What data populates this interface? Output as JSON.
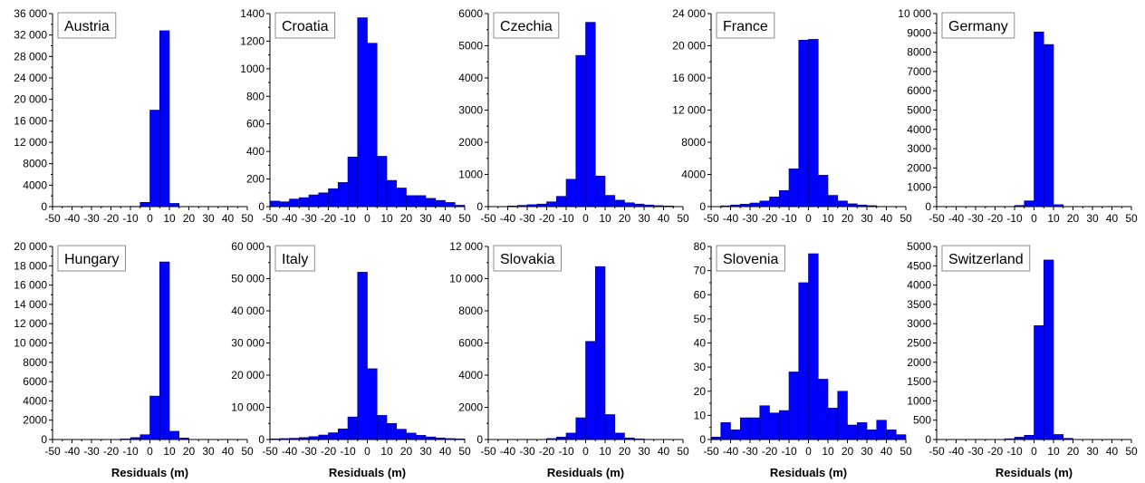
{
  "figure": {
    "bar_color": "#0000ff",
    "bar_edge_color": "#000080",
    "xlabel": "Residuals (m)"
  },
  "chart_data": [
    {
      "type": "bar",
      "title": "Austria",
      "xlabel": "",
      "ylabel": "",
      "bin_width": 5,
      "bin_edges_from": -50,
      "xlim": [
        -50,
        50
      ],
      "ylim": [
        0,
        36000
      ],
      "xticks": [
        -50,
        -40,
        -30,
        -20,
        -10,
        0,
        10,
        20,
        30,
        40,
        50
      ],
      "xtick_labels": [
        "-50",
        "-40",
        "-30",
        "-20",
        "-10",
        "0",
        "10",
        "20",
        "30",
        "40",
        "50"
      ],
      "yticks": [
        0,
        4000,
        8000,
        12000,
        16000,
        20000,
        24000,
        28000,
        32000,
        36000
      ],
      "ytick_labels": [
        "0",
        "4000",
        "8000",
        "12 000",
        "16 000",
        "20 000",
        "24 000",
        "28 000",
        "32 000",
        "36 000"
      ],
      "values": [
        0,
        0,
        0,
        0,
        0,
        0,
        0,
        20,
        100,
        800,
        18000,
        32800,
        600,
        30,
        0,
        0,
        0,
        0,
        0,
        0
      ]
    },
    {
      "type": "bar",
      "title": "Croatia",
      "xlabel": "",
      "ylabel": "",
      "bin_width": 5,
      "bin_edges_from": -50,
      "xlim": [
        -50,
        50
      ],
      "ylim": [
        0,
        1400
      ],
      "xticks": [
        -50,
        -40,
        -30,
        -20,
        -10,
        0,
        10,
        20,
        30,
        40,
        50
      ],
      "xtick_labels": [
        "-50",
        "-40",
        "-30",
        "-20",
        "-10",
        "0",
        "10",
        "20",
        "30",
        "40",
        "50"
      ],
      "yticks": [
        0,
        200,
        400,
        600,
        800,
        1000,
        1200,
        1400
      ],
      "ytick_labels": [
        "0",
        "200",
        "400",
        "600",
        "800",
        "1000",
        "1200",
        "1400"
      ],
      "values": [
        40,
        35,
        55,
        65,
        85,
        100,
        130,
        175,
        360,
        1370,
        1185,
        365,
        190,
        135,
        80,
        80,
        60,
        45,
        30,
        10
      ]
    },
    {
      "type": "bar",
      "title": "Czechia",
      "xlabel": "",
      "ylabel": "",
      "bin_width": 5,
      "bin_edges_from": -50,
      "xlim": [
        -50,
        50
      ],
      "ylim": [
        0,
        6000
      ],
      "xticks": [
        -50,
        -40,
        -30,
        -20,
        -10,
        0,
        10,
        20,
        30,
        40,
        50
      ],
      "xtick_labels": [
        "-50",
        "-40",
        "-30",
        "-20",
        "-10",
        "0",
        "10",
        "20",
        "30",
        "40",
        "50"
      ],
      "yticks": [
        0,
        1000,
        2000,
        3000,
        4000,
        5000,
        6000
      ],
      "ytick_labels": [
        "0",
        "1000",
        "2000",
        "3000",
        "4000",
        "5000",
        "6000"
      ],
      "values": [
        0,
        10,
        20,
        40,
        60,
        80,
        150,
        320,
        850,
        4700,
        5730,
        950,
        350,
        200,
        120,
        80,
        50,
        30,
        20,
        10
      ]
    },
    {
      "type": "bar",
      "title": "France",
      "xlabel": "",
      "ylabel": "",
      "bin_width": 5,
      "bin_edges_from": -50,
      "xlim": [
        -50,
        50
      ],
      "ylim": [
        0,
        24000
      ],
      "xticks": [
        -50,
        -40,
        -30,
        -20,
        -10,
        0,
        10,
        20,
        30,
        40,
        50
      ],
      "xtick_labels": [
        "-50",
        "-40",
        "-30",
        "-20",
        "-10",
        "0",
        "10",
        "20",
        "30",
        "40",
        "50"
      ],
      "yticks": [
        0,
        4000,
        8000,
        12000,
        16000,
        20000,
        24000
      ],
      "ytick_labels": [
        "0",
        "4000",
        "8000",
        "12 000",
        "16 000",
        "20 000",
        "24 000"
      ],
      "values": [
        50,
        100,
        200,
        300,
        450,
        700,
        1200,
        2000,
        4700,
        20700,
        20800,
        3900,
        1400,
        700,
        350,
        200,
        120,
        60,
        30,
        10
      ]
    },
    {
      "type": "bar",
      "title": "Germany",
      "xlabel": "",
      "ylabel": "",
      "bin_width": 5,
      "bin_edges_from": -50,
      "xlim": [
        -50,
        50
      ],
      "ylim": [
        0,
        10000
      ],
      "xticks": [
        -50,
        -40,
        -30,
        -20,
        -10,
        0,
        10,
        20,
        30,
        40,
        50
      ],
      "xtick_labels": [
        "-50",
        "-40",
        "-30",
        "-20",
        "-10",
        "0",
        "10",
        "20",
        "30",
        "40",
        "50"
      ],
      "yticks": [
        0,
        1000,
        2000,
        3000,
        4000,
        5000,
        6000,
        7000,
        8000,
        9000,
        10000
      ],
      "ytick_labels": [
        "0",
        "1000",
        "2000",
        "3000",
        "4000",
        "5000",
        "6000",
        "7000",
        "8000",
        "9000",
        "10 000"
      ],
      "values": [
        0,
        0,
        0,
        0,
        0,
        0,
        0,
        10,
        60,
        300,
        9050,
        8400,
        100,
        10,
        0,
        0,
        0,
        0,
        0,
        0
      ]
    },
    {
      "type": "bar",
      "title": "Hungary",
      "xlabel": "Residuals (m)",
      "ylabel": "",
      "bin_width": 5,
      "bin_edges_from": -50,
      "xlim": [
        -50,
        50
      ],
      "ylim": [
        0,
        20000
      ],
      "xticks": [
        -50,
        -40,
        -30,
        -20,
        -10,
        0,
        10,
        20,
        30,
        40,
        50
      ],
      "xtick_labels": [
        "-50",
        "-40",
        "-30",
        "-20",
        "-10",
        "0",
        "10",
        "20",
        "30",
        "40",
        "50"
      ],
      "yticks": [
        0,
        2000,
        4000,
        6000,
        8000,
        10000,
        12000,
        14000,
        16000,
        18000,
        20000
      ],
      "ytick_labels": [
        "0",
        "2000",
        "4000",
        "6000",
        "8000",
        "10 000",
        "12 000",
        "14 000",
        "16 000",
        "18 000",
        "20 000"
      ],
      "values": [
        0,
        0,
        0,
        0,
        0,
        0,
        20,
        60,
        200,
        500,
        4500,
        18400,
        850,
        150,
        30,
        10,
        0,
        0,
        0,
        0
      ]
    },
    {
      "type": "bar",
      "title": "Italy",
      "xlabel": "Residuals (m)",
      "ylabel": "",
      "bin_width": 5,
      "bin_edges_from": -50,
      "xlim": [
        -50,
        50
      ],
      "ylim": [
        0,
        60000
      ],
      "xticks": [
        -50,
        -40,
        -30,
        -20,
        -10,
        0,
        10,
        20,
        30,
        40,
        50
      ],
      "xtick_labels": [
        "-50",
        "-40",
        "-30",
        "-20",
        "-10",
        "0",
        "10",
        "20",
        "30",
        "40",
        "50"
      ],
      "yticks": [
        0,
        10000,
        20000,
        30000,
        40000,
        50000,
        60000
      ],
      "ytick_labels": [
        "0",
        "10 000",
        "20 000",
        "30 000",
        "40 000",
        "50 000",
        "60 000"
      ],
      "values": [
        200,
        300,
        400,
        600,
        900,
        1400,
        2100,
        3300,
        7000,
        52000,
        22000,
        7500,
        5000,
        3200,
        2000,
        1300,
        800,
        500,
        300,
        200
      ]
    },
    {
      "type": "bar",
      "title": "Slovakia",
      "xlabel": "Residuals (m)",
      "ylabel": "",
      "bin_width": 5,
      "bin_edges_from": -50,
      "xlim": [
        -50,
        50
      ],
      "ylim": [
        0,
        12000
      ],
      "xticks": [
        -50,
        -40,
        -30,
        -20,
        -10,
        0,
        10,
        20,
        30,
        40,
        50
      ],
      "xtick_labels": [
        "-50",
        "-40",
        "-30",
        "-20",
        "-10",
        "0",
        "10",
        "20",
        "30",
        "40",
        "50"
      ],
      "yticks": [
        0,
        2000,
        4000,
        6000,
        8000,
        10000,
        12000
      ],
      "ytick_labels": [
        "0",
        "2000",
        "4000",
        "6000",
        "8000",
        "10 000",
        "12 000"
      ],
      "values": [
        0,
        0,
        0,
        0,
        10,
        20,
        60,
        150,
        400,
        1350,
        6100,
        10750,
        1550,
        400,
        100,
        40,
        10,
        0,
        0,
        0
      ]
    },
    {
      "type": "bar",
      "title": "Slovenia",
      "xlabel": "Residuals (m)",
      "ylabel": "",
      "bin_width": 5,
      "bin_edges_from": -50,
      "xlim": [
        -50,
        50
      ],
      "ylim": [
        0,
        80
      ],
      "xticks": [
        -50,
        -40,
        -30,
        -20,
        -10,
        0,
        10,
        20,
        30,
        40,
        50
      ],
      "xtick_labels": [
        "-50",
        "-40",
        "-30",
        "-20",
        "-10",
        "0",
        "10",
        "20",
        "30",
        "40",
        "50"
      ],
      "yticks": [
        0,
        10,
        20,
        30,
        40,
        50,
        60,
        70,
        80
      ],
      "ytick_labels": [
        "0",
        "10",
        "20",
        "30",
        "40",
        "50",
        "60",
        "70",
        "80"
      ],
      "values": [
        1,
        7,
        4,
        9,
        9,
        14,
        11,
        12,
        28,
        65,
        77,
        25,
        13,
        20,
        6,
        7,
        4,
        8,
        4,
        2
      ]
    },
    {
      "type": "bar",
      "title": "Switzerland",
      "xlabel": "Residuals (m)",
      "ylabel": "",
      "bin_width": 5,
      "bin_edges_from": -50,
      "xlim": [
        -50,
        50
      ],
      "ylim": [
        0,
        5000
      ],
      "xticks": [
        -50,
        -40,
        -30,
        -20,
        -10,
        0,
        10,
        20,
        30,
        40,
        50
      ],
      "xtick_labels": [
        "-50",
        "-40",
        "-30",
        "-20",
        "-10",
        "0",
        "10",
        "20",
        "30",
        "40",
        "50"
      ],
      "yticks": [
        0,
        500,
        1000,
        1500,
        2000,
        2500,
        3000,
        3500,
        4000,
        4500,
        5000
      ],
      "ytick_labels": [
        "0",
        "500",
        "1000",
        "1500",
        "2000",
        "2500",
        "3000",
        "3500",
        "4000",
        "4500",
        "5000"
      ],
      "values": [
        0,
        0,
        0,
        0,
        0,
        0,
        10,
        20,
        60,
        110,
        2950,
        4650,
        130,
        30,
        10,
        0,
        0,
        0,
        0,
        0
      ]
    }
  ]
}
